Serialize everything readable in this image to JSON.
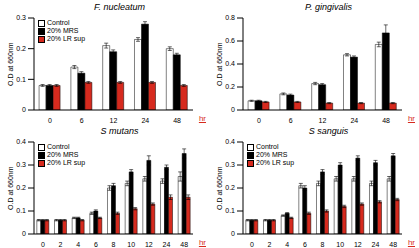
{
  "chart_data": [
    {
      "type": "bar",
      "title": "F. nucleatum",
      "x_label": "hr",
      "y_label": "O.D at 660nm",
      "categories": [
        "0",
        "6",
        "12",
        "24",
        "48"
      ],
      "series": [
        {
          "name": "Control",
          "color": "#ffffff",
          "values": [
            0.08,
            0.14,
            0.21,
            0.23,
            0.2
          ],
          "errors": [
            0.003,
            0.005,
            0.008,
            0.006,
            0.006
          ]
        },
        {
          "name": "20% MRS",
          "color": "#000000",
          "values": [
            0.08,
            0.12,
            0.19,
            0.28,
            0.18
          ],
          "errors": [
            0.003,
            0.005,
            0.006,
            0.008,
            0.005
          ]
        },
        {
          "name": "20% LR sup",
          "color": "#d62a1e",
          "values": [
            0.08,
            0.09,
            0.09,
            0.09,
            0.08
          ],
          "errors": [
            0.003,
            0.003,
            0.003,
            0.003,
            0.003
          ]
        }
      ],
      "ylim": [
        0,
        0.3
      ],
      "yticks": [
        0,
        0.1,
        0.2,
        0.3
      ],
      "legend": "upper left"
    },
    {
      "type": "bar",
      "title": "P. gingivalis",
      "x_label": "hr",
      "y_label": "O.D at 660nm",
      "categories": [
        "0",
        "6",
        "12",
        "24",
        "48"
      ],
      "series": [
        {
          "name": "Control",
          "color": "#ffffff",
          "values": [
            0.08,
            0.14,
            0.23,
            0.48,
            0.57
          ],
          "errors": [
            0.005,
            0.008,
            0.01,
            0.01,
            0.02
          ]
        },
        {
          "name": "20% MRS",
          "color": "#000000",
          "values": [
            0.08,
            0.13,
            0.22,
            0.46,
            0.67
          ],
          "errors": [
            0.005,
            0.008,
            0.01,
            0.01,
            0.07
          ]
        },
        {
          "name": "20% LR sup",
          "color": "#d62a1e",
          "values": [
            0.07,
            0.07,
            0.06,
            0.06,
            0.06
          ],
          "errors": [
            0.005,
            0.005,
            0.005,
            0.005,
            0.005
          ]
        }
      ],
      "ylim": [
        0,
        0.8
      ],
      "yticks": [
        0,
        0.2,
        0.4,
        0.6,
        0.8
      ]
    },
    {
      "type": "bar",
      "title": "S mutans",
      "x_label": "hr",
      "y_label": "O.D at 660nm",
      "categories": [
        "0",
        "2",
        "4",
        "6",
        "8",
        "10",
        "12",
        "24",
        "48"
      ],
      "series": [
        {
          "name": "Control",
          "color": "#ffffff",
          "values": [
            0.06,
            0.06,
            0.07,
            0.09,
            0.2,
            0.22,
            0.24,
            0.23,
            0.25
          ],
          "errors": [
            0.003,
            0.003,
            0.003,
            0.005,
            0.01,
            0.01,
            0.01,
            0.01,
            0.02
          ]
        },
        {
          "name": "20% MRS",
          "color": "#000000",
          "values": [
            0.06,
            0.06,
            0.07,
            0.1,
            0.21,
            0.27,
            0.32,
            0.29,
            0.35
          ],
          "errors": [
            0.003,
            0.003,
            0.003,
            0.005,
            0.01,
            0.01,
            0.02,
            0.01,
            0.02
          ]
        },
        {
          "name": "20% LR sup",
          "color": "#d62a1e",
          "values": [
            0.06,
            0.06,
            0.06,
            0.07,
            0.09,
            0.11,
            0.13,
            0.16,
            0.16
          ],
          "errors": [
            0.003,
            0.003,
            0.003,
            0.003,
            0.005,
            0.005,
            0.005,
            0.01,
            0.01
          ]
        }
      ],
      "ylim": [
        0,
        0.4
      ],
      "yticks": [
        0,
        0.1,
        0.2,
        0.3,
        0.4
      ],
      "legend": "upper left"
    },
    {
      "type": "bar",
      "title": "S sanguis",
      "x_label": "hr",
      "y_label": "O.D at 660nm",
      "categories": [
        "0",
        "2",
        "4",
        "6",
        "8",
        "10",
        "12",
        "24",
        "48"
      ],
      "series": [
        {
          "name": "Control",
          "color": "#ffffff",
          "values": [
            0.06,
            0.06,
            0.08,
            0.21,
            0.22,
            0.24,
            0.24,
            0.22,
            0.24
          ],
          "errors": [
            0.003,
            0.003,
            0.003,
            0.01,
            0.01,
            0.01,
            0.01,
            0.01,
            0.01
          ]
        },
        {
          "name": "20% MRS",
          "color": "#000000",
          "values": [
            0.06,
            0.06,
            0.09,
            0.2,
            0.27,
            0.3,
            0.33,
            0.31,
            0.34
          ],
          "errors": [
            0.003,
            0.003,
            0.003,
            0.01,
            0.01,
            0.01,
            0.01,
            0.01,
            0.01
          ]
        },
        {
          "name": "20% LR sup",
          "color": "#d62a1e",
          "values": [
            0.06,
            0.06,
            0.07,
            0.09,
            0.1,
            0.12,
            0.13,
            0.14,
            0.15
          ],
          "errors": [
            0.003,
            0.003,
            0.003,
            0.005,
            0.005,
            0.005,
            0.005,
            0.005,
            0.005
          ]
        }
      ],
      "ylim": [
        0,
        0.4
      ],
      "yticks": [
        0,
        0.1,
        0.2,
        0.3,
        0.4
      ],
      "legend": "upper left"
    }
  ]
}
